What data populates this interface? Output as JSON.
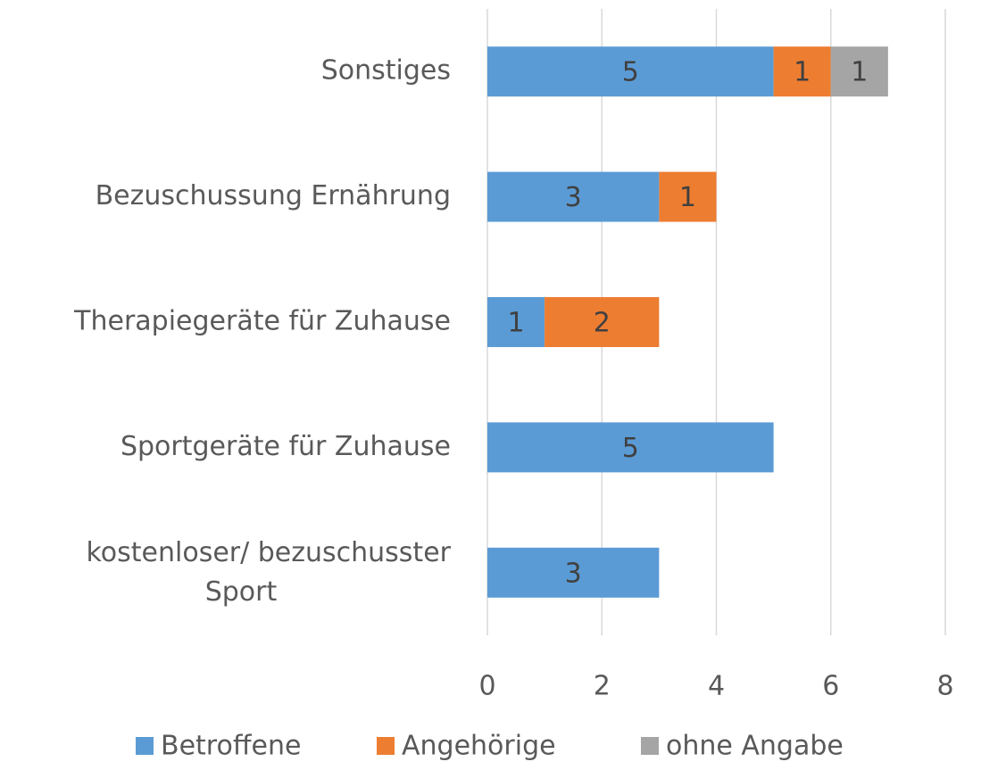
{
  "chart_data": {
    "type": "stacked_barh",
    "categories": [
      "Sonstiges",
      "Bezuschussung Ernährung",
      "Therapiegeräte für Zuhause",
      "Sportgeräte für Zuhause",
      "kostenloser/ bezuschusster Sport"
    ],
    "series": [
      {
        "name": "Betroffene",
        "color": "#5b9bd5",
        "values": [
          5,
          3,
          1,
          5,
          3
        ]
      },
      {
        "name": "Angehörige",
        "color": "#ed7d31",
        "values": [
          1,
          1,
          2,
          null,
          null
        ]
      },
      {
        "name": "ohne Angabe",
        "color": "#a5a5a5",
        "values": [
          1,
          null,
          null,
          null,
          null
        ]
      }
    ],
    "xlim": [
      0,
      8
    ],
    "xticks": [
      0,
      2,
      4,
      6,
      8
    ],
    "grid": true,
    "legend": "bottom"
  }
}
